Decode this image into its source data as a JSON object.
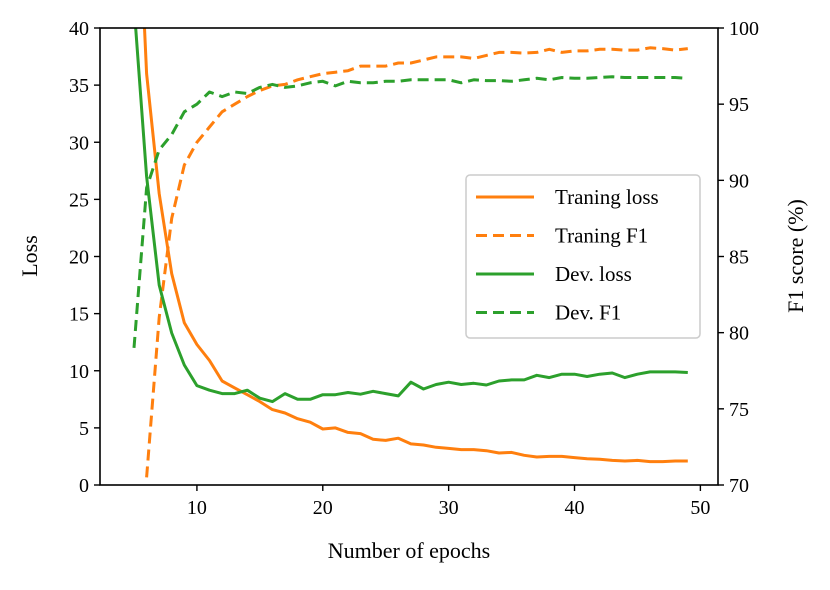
{
  "chart_data": {
    "type": "line",
    "title": "",
    "xlabel": "Number of epochs",
    "ylabel": "Loss",
    "y2label": "F1 score (%)",
    "xlim": [
      2.3,
      51.4
    ],
    "ylim": [
      0,
      40
    ],
    "y2lim": [
      70,
      100
    ],
    "xticks": [
      10,
      20,
      30,
      40,
      50
    ],
    "yticks": [
      0,
      5,
      10,
      15,
      20,
      25,
      30,
      35,
      40
    ],
    "y2ticks": [
      70,
      75,
      80,
      85,
      90,
      95,
      100
    ],
    "grid": false,
    "legend_position": "center-right",
    "series": [
      {
        "name": "Traning loss",
        "axis": "left",
        "style": "solid",
        "color": "#ff7f0e",
        "x": [
          5,
          6,
          7,
          8,
          9,
          10,
          11,
          12,
          13,
          14,
          15,
          16,
          17,
          18,
          19,
          20,
          21,
          22,
          23,
          24,
          25,
          26,
          27,
          28,
          29,
          30,
          31,
          32,
          33,
          34,
          35,
          36,
          37,
          38,
          39,
          40,
          41,
          42,
          43,
          44,
          45,
          46,
          47,
          48,
          49
        ],
        "values": [
          60,
          36,
          25.5,
          18.5,
          14.2,
          12.3,
          10.9,
          9.1,
          8.5,
          7.9,
          7.3,
          6.6,
          6.3,
          5.8,
          5.5,
          4.9,
          5.0,
          4.6,
          4.5,
          4.0,
          3.9,
          4.1,
          3.6,
          3.5,
          3.3,
          3.2,
          3.1,
          3.1,
          3.0,
          2.8,
          2.85,
          2.6,
          2.45,
          2.5,
          2.5,
          2.4,
          2.3,
          2.25,
          2.15,
          2.1,
          2.15,
          2.05,
          2.05,
          2.1,
          2.1
        ]
      },
      {
        "name": "Traning F1",
        "axis": "right",
        "style": "dashed",
        "color": "#ff7f0e",
        "x": [
          6,
          7,
          8,
          9,
          10,
          11,
          12,
          13,
          14,
          15,
          16,
          17,
          18,
          19,
          20,
          21,
          22,
          23,
          24,
          25,
          26,
          27,
          28,
          29,
          30,
          31,
          32,
          33,
          34,
          35,
          36,
          37,
          38,
          39,
          40,
          41,
          42,
          43,
          44,
          45,
          46,
          47,
          48,
          49
        ],
        "values": [
          70.5,
          81,
          87.5,
          91,
          92.5,
          93.5,
          94.5,
          95,
          95.5,
          95.9,
          96.2,
          96.3,
          96.6,
          96.8,
          97.0,
          97.1,
          97.2,
          97.5,
          97.5,
          97.5,
          97.7,
          97.7,
          97.9,
          98.1,
          98.1,
          98.1,
          98.0,
          98.2,
          98.4,
          98.4,
          98.35,
          98.4,
          98.6,
          98.4,
          98.5,
          98.5,
          98.6,
          98.6,
          98.55,
          98.55,
          98.7,
          98.65,
          98.55,
          98.65
        ]
      },
      {
        "name": "Dev. loss",
        "axis": "left",
        "style": "solid",
        "color": "#2ca02c",
        "x": [
          5,
          6,
          7,
          8,
          9,
          10,
          11,
          12,
          13,
          14,
          15,
          16,
          17,
          18,
          19,
          20,
          21,
          22,
          23,
          24,
          25,
          26,
          27,
          28,
          29,
          30,
          31,
          32,
          33,
          34,
          35,
          36,
          37,
          38,
          39,
          40,
          41,
          42,
          43,
          44,
          45,
          46,
          47,
          48,
          49
        ],
        "values": [
          42,
          27,
          17.5,
          13.3,
          10.5,
          8.7,
          8.3,
          8.0,
          8.0,
          8.3,
          7.6,
          7.3,
          8.0,
          7.5,
          7.5,
          7.9,
          7.9,
          8.1,
          7.95,
          8.2,
          8.0,
          7.8,
          9.0,
          8.4,
          8.8,
          9.0,
          8.8,
          8.9,
          8.75,
          9.1,
          9.2,
          9.2,
          9.6,
          9.4,
          9.7,
          9.7,
          9.5,
          9.7,
          9.8,
          9.4,
          9.7,
          9.9,
          9.9,
          9.9,
          9.85
        ]
      },
      {
        "name": "Dev. F1",
        "axis": "right",
        "style": "dashed",
        "color": "#2ca02c",
        "x": [
          5,
          6,
          7,
          8,
          9,
          10,
          11,
          12,
          13,
          14,
          15,
          16,
          17,
          18,
          19,
          20,
          21,
          22,
          23,
          24,
          25,
          26,
          27,
          28,
          29,
          30,
          31,
          32,
          33,
          34,
          35,
          36,
          37,
          38,
          39,
          40,
          41,
          42,
          43,
          44,
          45,
          46,
          47,
          48,
          49
        ],
        "values": [
          79,
          89.5,
          92,
          93,
          94.5,
          95,
          95.8,
          95.5,
          95.8,
          95.7,
          96.1,
          96.3,
          96.1,
          96.2,
          96.4,
          96.5,
          96.2,
          96.5,
          96.4,
          96.4,
          96.5,
          96.5,
          96.6,
          96.6,
          96.6,
          96.6,
          96.4,
          96.6,
          96.55,
          96.55,
          96.5,
          96.6,
          96.7,
          96.6,
          96.75,
          96.7,
          96.7,
          96.75,
          96.8,
          96.75,
          96.75,
          96.75,
          96.75,
          96.75,
          96.7
        ]
      }
    ]
  }
}
